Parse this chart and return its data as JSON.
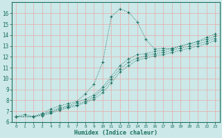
{
  "xlabel": "Humidex (Indice chaleur)",
  "bg_color": "#cce8e8",
  "grid_color_h": "#e8aaaa",
  "grid_color_v": "#e8aaaa",
  "line_color": "#1a7060",
  "xlim": [
    -0.5,
    23.5
  ],
  "ylim": [
    6,
    17
  ],
  "xticks": [
    0,
    1,
    2,
    3,
    4,
    5,
    6,
    7,
    8,
    9,
    10,
    11,
    12,
    13,
    14,
    15,
    16,
    17,
    18,
    19,
    20,
    21,
    22,
    23
  ],
  "yticks": [
    6,
    7,
    8,
    9,
    10,
    11,
    12,
    13,
    14,
    15,
    16
  ],
  "series": [
    {
      "x": [
        0,
        1,
        2,
        3,
        4,
        5,
        6,
        7,
        8,
        9,
        10,
        11,
        12,
        13,
        14,
        15,
        16,
        17,
        18,
        19,
        20,
        21,
        22,
        23
      ],
      "y": [
        6.5,
        6.7,
        6.5,
        6.8,
        7.2,
        7.5,
        7.7,
        7.9,
        8.6,
        9.5,
        11.5,
        15.7,
        16.4,
        16.1,
        15.2,
        13.6,
        12.7,
        12.8,
        12.7,
        13.0,
        13.2,
        13.4,
        13.8,
        14.1
      ]
    },
    {
      "x": [
        0,
        2,
        3,
        4,
        5,
        6,
        7,
        8,
        9,
        10,
        11,
        12,
        13,
        14,
        15,
        16,
        17,
        18,
        19,
        20,
        21,
        22,
        23
      ],
      "y": [
        6.5,
        6.5,
        6.7,
        7.0,
        7.3,
        7.5,
        7.8,
        8.1,
        8.5,
        9.2,
        10.2,
        11.2,
        11.8,
        12.2,
        12.3,
        12.5,
        12.6,
        12.8,
        13.0,
        13.2,
        13.4,
        13.6,
        13.9
      ]
    },
    {
      "x": [
        0,
        2,
        3,
        4,
        5,
        6,
        7,
        8,
        9,
        10,
        11,
        12,
        13,
        14,
        15,
        16,
        17,
        18,
        19,
        20,
        21,
        22,
        23
      ],
      "y": [
        6.5,
        6.5,
        6.7,
        6.9,
        7.2,
        7.4,
        7.6,
        7.9,
        8.3,
        9.0,
        9.9,
        10.9,
        11.5,
        11.9,
        12.1,
        12.3,
        12.4,
        12.6,
        12.8,
        13.0,
        13.2,
        13.4,
        13.7
      ]
    },
    {
      "x": [
        0,
        2,
        3,
        4,
        5,
        6,
        7,
        8,
        9,
        10,
        11,
        12,
        13,
        14,
        15,
        16,
        17,
        18,
        19,
        20,
        21,
        22,
        23
      ],
      "y": [
        6.5,
        6.5,
        6.6,
        6.8,
        7.1,
        7.3,
        7.5,
        7.8,
        8.1,
        8.7,
        9.6,
        10.6,
        11.2,
        11.7,
        11.9,
        12.1,
        12.2,
        12.4,
        12.6,
        12.8,
        13.0,
        13.2,
        13.5
      ]
    }
  ]
}
